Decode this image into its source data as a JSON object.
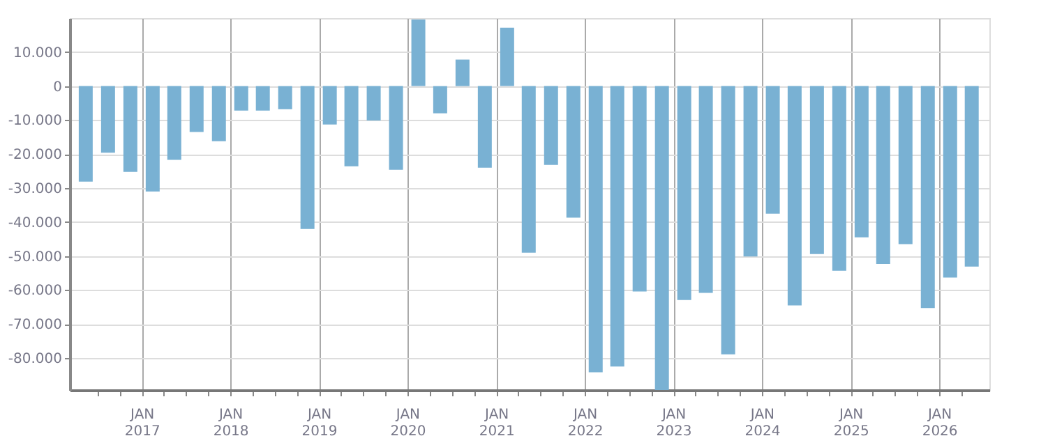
{
  "chart_data": {
    "type": "bar",
    "x": [
      "2016-05-15",
      "2016-08-15",
      "2016-11-15",
      "2017-02-15",
      "2017-05-15",
      "2017-08-15",
      "2017-11-15",
      "2018-02-15",
      "2018-05-15",
      "2018-08-15",
      "2018-11-15",
      "2019-02-15",
      "2019-05-15",
      "2019-08-15",
      "2019-11-15",
      "2020-02-15",
      "2020-05-15",
      "2020-08-15",
      "2020-11-15",
      "2021-02-15",
      "2021-05-15",
      "2021-08-15",
      "2021-11-15",
      "2022-02-15",
      "2022-05-15",
      "2022-08-15",
      "2022-11-15",
      "2023-02-15",
      "2023-05-15",
      "2023-08-15",
      "2023-11-15",
      "2024-02-15",
      "2024-05-15",
      "2024-08-15",
      "2024-11-15",
      "2025-02-15",
      "2025-05-15",
      "2025-08-15",
      "2025-11-15",
      "2026-02-15",
      "2026-05-15"
    ],
    "values": [
      -28100,
      -19600,
      -25200,
      -31000,
      -21700,
      -13500,
      -16200,
      -7200,
      -7200,
      -6800,
      -42000,
      -11300,
      -23600,
      -10100,
      -24600,
      19600,
      -8000,
      7800,
      -24000,
      17200,
      -49000,
      -23200,
      -38700,
      -84200,
      -82500,
      -60400,
      -89400,
      -62900,
      -60800,
      -78900,
      -50100,
      -37500,
      -64500,
      -49400,
      -54300,
      -44500,
      -52300,
      -46500,
      -65300,
      -56300,
      -53100
    ],
    "color": "#79b1d3",
    "xlim": [
      "2016-04-08",
      "2026-06-28"
    ],
    "xticks": [
      {
        "value": "2016-07-01",
        "label": null
      },
      {
        "value": "2016-10-01",
        "label": null
      },
      {
        "value": "2017-01-01",
        "label": "JAN\n2017"
      },
      {
        "value": "2017-04-01",
        "label": null
      },
      {
        "value": "2017-07-01",
        "label": null
      },
      {
        "value": "2017-10-01",
        "label": null
      },
      {
        "value": "2018-01-01",
        "label": "JAN\n2018"
      },
      {
        "value": "2018-04-01",
        "label": null
      },
      {
        "value": "2018-07-01",
        "label": null
      },
      {
        "value": "2018-10-01",
        "label": null
      },
      {
        "value": "2019-01-01",
        "label": "JAN\n2019"
      },
      {
        "value": "2019-04-01",
        "label": null
      },
      {
        "value": "2019-07-01",
        "label": null
      },
      {
        "value": "2019-10-01",
        "label": null
      },
      {
        "value": "2020-01-01",
        "label": "JAN\n2020"
      },
      {
        "value": "2020-04-01",
        "label": null
      },
      {
        "value": "2020-07-01",
        "label": null
      },
      {
        "value": "2020-10-01",
        "label": null
      },
      {
        "value": "2021-01-01",
        "label": "JAN\n2021"
      },
      {
        "value": "2021-04-01",
        "label": null
      },
      {
        "value": "2021-07-01",
        "label": null
      },
      {
        "value": "2021-10-01",
        "label": null
      },
      {
        "value": "2022-01-01",
        "label": "JAN\n2022"
      },
      {
        "value": "2022-04-01",
        "label": null
      },
      {
        "value": "2022-07-01",
        "label": null
      },
      {
        "value": "2022-10-01",
        "label": null
      },
      {
        "value": "2023-01-01",
        "label": "JAN\n2023"
      },
      {
        "value": "2023-04-01",
        "label": null
      },
      {
        "value": "2023-07-01",
        "label": null
      },
      {
        "value": "2023-10-01",
        "label": null
      },
      {
        "value": "2024-01-01",
        "label": "JAN\n2024"
      },
      {
        "value": "2024-04-01",
        "label": null
      },
      {
        "value": "2024-07-01",
        "label": null
      },
      {
        "value": "2024-10-01",
        "label": null
      },
      {
        "value": "2025-01-01",
        "label": "JAN\n2025"
      },
      {
        "value": "2025-04-01",
        "label": null
      },
      {
        "value": "2025-07-01",
        "label": null
      },
      {
        "value": "2025-10-01",
        "label": null
      },
      {
        "value": "2026-01-01",
        "label": "JAN\n2026"
      },
      {
        "value": "2026-04-01",
        "label": null
      }
    ],
    "ylim": [
      -89400,
      20000
    ],
    "yticks": [
      {
        "value": 10000,
        "label": "10.000"
      },
      0,
      {
        "value": -10000,
        "label": "-10.000"
      },
      {
        "value": -20000,
        "label": "-20.000"
      },
      {
        "value": -30000,
        "label": "-30.000"
      },
      {
        "value": -40000,
        "label": "-40.000"
      },
      {
        "value": -50000,
        "label": "-50.000"
      },
      {
        "value": -60000,
        "label": "-60.000"
      },
      {
        "value": -70000,
        "label": "-70.000"
      },
      {
        "value": -80000,
        "label": "-80.000"
      }
    ],
    "grid": true
  }
}
